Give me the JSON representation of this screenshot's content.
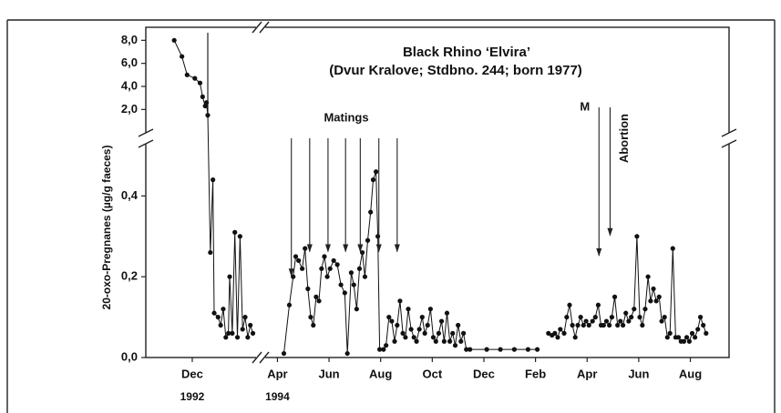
{
  "chart_data": {
    "type": "line",
    "title": "Black Rhino ‘Elvira’",
    "subtitle": "(Dvur Kralove; Stdbno. 244; born 1977)",
    "y_label": "20-oxo-Pregnanes (µg/g faeces)",
    "color": "#111111",
    "ylim": [
      0,
      8.5
    ],
    "ybreak": [
      0.5,
      1.0
    ],
    "yticks": [
      {
        "value": 0,
        "label": "0,0"
      },
      {
        "value": 0.2,
        "label": "0,2"
      },
      {
        "value": 0.4,
        "label": "0,4"
      },
      {
        "value": 2,
        "label": "2,0"
      },
      {
        "value": 4,
        "label": "4,0"
      },
      {
        "value": 6,
        "label": "6,0"
      },
      {
        "value": 8,
        "label": "8,0"
      }
    ],
    "xlim": [
      9.2,
      44.5
    ],
    "xbreak": [
      13.7,
      26.4
    ],
    "xticks": [
      {
        "value": 11,
        "label": "Dec"
      },
      {
        "value": 27,
        "label": "Apr"
      },
      {
        "value": 29,
        "label": "Jun"
      },
      {
        "value": 31,
        "label": "Aug"
      },
      {
        "value": 33,
        "label": "Oct"
      },
      {
        "value": 35,
        "label": "Dec"
      },
      {
        "value": 37,
        "label": "Feb"
      },
      {
        "value": 39,
        "label": "Apr"
      },
      {
        "value": 41,
        "label": "Jun"
      },
      {
        "value": 43,
        "label": "Aug"
      }
    ],
    "year_labels": [
      {
        "label": "1992",
        "x": 11
      },
      {
        "label": "1994",
        "x": 27
      }
    ],
    "grid": false,
    "x": [
      10.3,
      10.6,
      10.8,
      11.1,
      11.3,
      11.4,
      11.5,
      11.55,
      11.6,
      11.7,
      11.8,
      11.85,
      12.0,
      12.1,
      12.2,
      12.3,
      12.4,
      12.45,
      12.55,
      12.65,
      12.75,
      12.85,
      12.95,
      13.05,
      13.15,
      13.25,
      13.35,
      20,
      27.25,
      27.46,
      27.61,
      27.71,
      27.82,
      27.96,
      28.07,
      28.18,
      28.29,
      28.39,
      28.5,
      28.61,
      28.71,
      28.82,
      28.93,
      29.04,
      29.18,
      29.32,
      29.46,
      29.61,
      29.71,
      29.86,
      29.96,
      30.07,
      30.18,
      30.29,
      30.39,
      30.5,
      30.61,
      30.71,
      30.82,
      30.89,
      30.96,
      31.11,
      31.21,
      31.32,
      31.43,
      31.54,
      31.64,
      31.75,
      31.86,
      31.96,
      32.07,
      32.18,
      32.29,
      32.39,
      32.5,
      32.61,
      32.71,
      32.82,
      32.93,
      33.04,
      33.14,
      33.25,
      33.36,
      33.46,
      33.57,
      33.68,
      33.79,
      33.89,
      34.0,
      34.11,
      34.21,
      34.32,
      34.46,
      35.11,
      35.64,
      36.18,
      36.71,
      37.07,
      37.3,
      37.5,
      37.64,
      37.75,
      37.86,
      37.96,
      38.11,
      38.21,
      38.32,
      38.43,
      38.54,
      38.64,
      38.75,
      38.86,
      38.96,
      39.07,
      39.21,
      39.32,
      39.43,
      39.54,
      39.64,
      39.75,
      39.86,
      39.96,
      40.07,
      40.18,
      40.29,
      40.39,
      40.5,
      40.61,
      40.71,
      40.82,
      40.93,
      41.04,
      41.14,
      41.25,
      41.36,
      41.46,
      41.57,
      41.68,
      41.79,
      41.89,
      42.0,
      42.11,
      42.21,
      42.32,
      42.43,
      42.54,
      42.64,
      42.75,
      42.86,
      42.96,
      43.07,
      43.18,
      43.29,
      43.39,
      43.5,
      43.61
    ],
    "values": [
      8.0,
      6.6,
      5.0,
      4.7,
      4.3,
      3.1,
      2.3,
      2.6,
      1.5,
      0.26,
      0.44,
      0.11,
      0.1,
      0.08,
      0.12,
      0.05,
      0.06,
      0.2,
      0.06,
      0.31,
      0.05,
      0.3,
      0.07,
      0.1,
      0.05,
      0.08,
      0.06,
      null,
      0.01,
      0.13,
      0.2,
      0.25,
      0.24,
      0.22,
      0.27,
      0.17,
      0.1,
      0.08,
      0.15,
      0.14,
      0.22,
      0.25,
      0.2,
      0.22,
      0.24,
      0.23,
      0.18,
      0.16,
      0.01,
      0.21,
      0.18,
      0.12,
      0.22,
      0.26,
      0.2,
      0.29,
      0.36,
      0.44,
      0.46,
      0.3,
      0.02,
      0.02,
      0.03,
      0.1,
      0.09,
      0.04,
      0.08,
      0.14,
      0.06,
      0.05,
      0.12,
      0.07,
      0.05,
      0.04,
      0.07,
      0.1,
      0.06,
      0.08,
      0.12,
      0.05,
      0.04,
      0.06,
      0.09,
      0.04,
      0.11,
      0.04,
      0.06,
      0.03,
      0.08,
      0.04,
      0.06,
      0.02,
      0.02,
      0.02,
      0.02,
      0.02,
      0.02,
      0.02,
      null,
      0.06,
      0.055,
      0.06,
      0.05,
      0.07,
      0.06,
      0.1,
      0.13,
      0.08,
      0.05,
      0.08,
      0.1,
      0.08,
      0.09,
      0.08,
      0.09,
      0.1,
      0.13,
      0.08,
      0.08,
      0.09,
      0.08,
      0.1,
      0.15,
      0.08,
      0.09,
      0.08,
      0.11,
      0.09,
      0.1,
      0.12,
      0.3,
      0.1,
      0.08,
      0.12,
      0.2,
      0.14,
      0.17,
      0.14,
      0.15,
      0.09,
      0.1,
      0.05,
      0.06,
      0.27,
      0.05,
      0.05,
      0.04,
      0.04,
      0.05,
      0.04,
      0.06,
      0.05,
      0.07,
      0.1,
      0.08,
      0.06
    ],
    "annotations": [
      {
        "label": "Matings",
        "arrows": [
          {
            "x": 27.54,
            "y": 0.2
          },
          {
            "x": 28.25,
            "y": 0.26
          },
          {
            "x": 28.96,
            "y": 0.26
          },
          {
            "x": 29.64,
            "y": 0.26
          },
          {
            "x": 30.21,
            "y": 0.26
          },
          {
            "x": 30.93,
            "y": 0.26
          },
          {
            "x": 31.64,
            "y": 0.26
          }
        ]
      },
      {
        "label": "M",
        "arrows": [
          {
            "x": 39.46,
            "y": 0.25
          }
        ]
      },
      {
        "label": "Abortion",
        "arrows": [
          {
            "x": 39.89,
            "y": 0.3
          }
        ]
      }
    ]
  }
}
